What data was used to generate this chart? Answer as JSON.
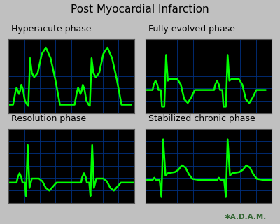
{
  "title": "Post Myocardial Infarction",
  "title_fontsize": 11,
  "label_fontsize": 9,
  "background_color": "#000000",
  "figure_bg": "#c0c0c0",
  "grid_color": "#003080",
  "ecg_color": "#00ff00",
  "ecg_linewidth": 1.8,
  "adam_color": "#336633",
  "panels": [
    {
      "label": "Hyperacute phase",
      "type": "hyperacute"
    },
    {
      "label": "Fully evolved phase",
      "type": "fully_evolved"
    },
    {
      "label": "Resolution phase",
      "type": "resolution"
    },
    {
      "label": "Stabilized chronic phase",
      "type": "stabilized_chronic"
    }
  ]
}
